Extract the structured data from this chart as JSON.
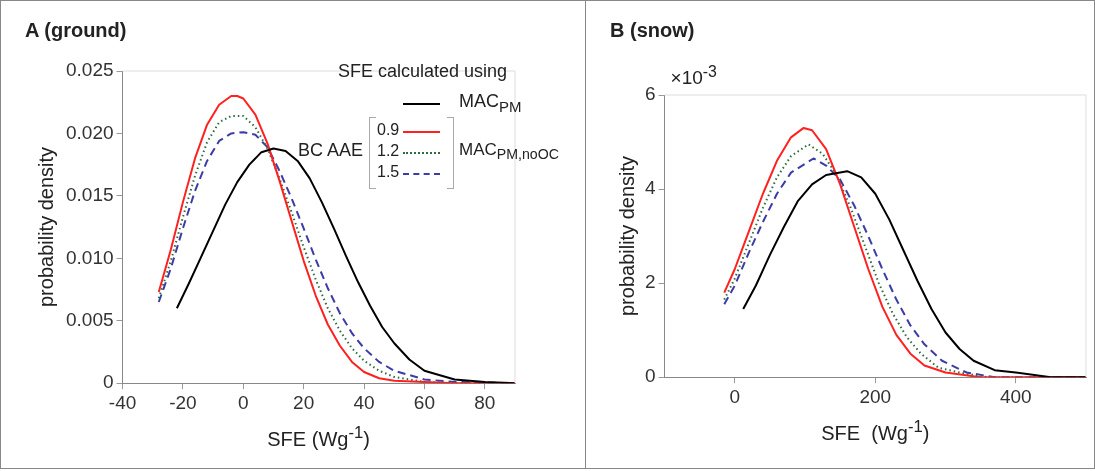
{
  "chart_data": [
    {
      "type": "line",
      "title": "A (ground)",
      "xlabel": "SFE (Wg$^{-1}$)",
      "ylabel": "probability density",
      "legend_title": "SFE calculated using",
      "legend": "top right",
      "marker": "none",
      "grid": false,
      "xlim": [
        -40,
        90
      ],
      "xticks": [
        -40,
        -20,
        0,
        20,
        40,
        60,
        80
      ],
      "ylim": [
        0,
        0.025
      ],
      "yticks": [
        0,
        0.005,
        {
          "value": 0.01,
          "label": "0.010"
        },
        0.015,
        {
          "value": 0.02,
          "label": "0.020"
        },
        0.025
      ],
      "annotations": [
        "BC AAE",
        "MAC$_{PM,noOC}$"
      ],
      "series": [
        {
          "name": "MAC$_{PM}$",
          "color": "#000000",
          "line_style": "solid",
          "x": [
            -22,
            -18,
            -14,
            -10,
            -6,
            -2,
            2,
            6,
            10,
            14,
            18,
            22,
            26,
            30,
            34,
            38,
            42,
            46,
            50,
            55,
            60,
            70,
            80,
            90
          ],
          "values": [
            0.006,
            0.008,
            0.0101,
            0.0122,
            0.0143,
            0.0161,
            0.0175,
            0.0185,
            0.0188,
            0.0186,
            0.0178,
            0.0164,
            0.0145,
            0.0124,
            0.0102,
            0.0081,
            0.0062,
            0.0045,
            0.0032,
            0.0019,
            0.001,
            0.0003,
            0.0001,
            0
          ]
        },
        {
          "name": "0.9",
          "color": "#ff2020",
          "line_style": "solid",
          "x": [
            -28,
            -24,
            -20,
            -16,
            -12,
            -8,
            -4,
            -2,
            0,
            4,
            8,
            12,
            16,
            20,
            24,
            28,
            32,
            36,
            40,
            45,
            50,
            60,
            70,
            90
          ],
          "values": [
            0.0073,
            0.0107,
            0.0145,
            0.018,
            0.0207,
            0.0223,
            0.023,
            0.023,
            0.0228,
            0.0215,
            0.0192,
            0.0162,
            0.013,
            0.0098,
            0.007,
            0.0047,
            0.003,
            0.0017,
            0.0009,
            0.0004,
            0.0002,
            0.0001,
            0,
            0
          ]
        },
        {
          "name": "1.2",
          "color": "#2e6b3e",
          "line_style": "dotted",
          "x": [
            -28,
            -24,
            -20,
            -16,
            -12,
            -8,
            -4,
            0,
            4,
            8,
            12,
            16,
            20,
            24,
            28,
            32,
            36,
            40,
            45,
            50,
            60,
            70,
            90
          ],
          "values": [
            0.0068,
            0.0098,
            0.0133,
            0.0166,
            0.0193,
            0.0209,
            0.0214,
            0.0214,
            0.0205,
            0.0188,
            0.0164,
            0.0137,
            0.0109,
            0.0083,
            0.006,
            0.0042,
            0.0028,
            0.0018,
            0.001,
            0.0005,
            0.0001,
            0,
            0
          ]
        },
        {
          "name": "1.5",
          "color": "#3c3ca8",
          "line_style": "dashed",
          "x": [
            -28,
            -24,
            -20,
            -16,
            -12,
            -8,
            -4,
            0,
            4,
            8,
            12,
            16,
            20,
            24,
            28,
            32,
            36,
            40,
            45,
            50,
            60,
            70,
            90
          ],
          "values": [
            0.0065,
            0.0092,
            0.0124,
            0.0154,
            0.0178,
            0.0194,
            0.02,
            0.0201,
            0.0199,
            0.0189,
            0.017,
            0.0148,
            0.0124,
            0.0099,
            0.0076,
            0.0056,
            0.004,
            0.0028,
            0.0017,
            0.001,
            0.0003,
            0.0001,
            0
          ]
        }
      ]
    },
    {
      "type": "line",
      "title": "B (snow)",
      "xlabel": "SFE  (Wg$^{-1}$)",
      "ylabel": "probability density",
      "marker": "none",
      "grid": false,
      "xlim": [
        -100,
        500
      ],
      "xticks": [
        0,
        200,
        400
      ],
      "ylim": [
        0,
        6
      ],
      "yticks": [
        0,
        2,
        4,
        6
      ],
      "annotations": [
        "×10$^{-3}$"
      ],
      "series": [
        {
          "color": "#000000",
          "line_style": "solid",
          "x": [
            12,
            30,
            50,
            70,
            90,
            110,
            130,
            160,
            180,
            200,
            220,
            240,
            260,
            280,
            300,
            320,
            340,
            370,
            400,
            450,
            500
          ],
          "values": [
            1.45,
            1.95,
            2.6,
            3.2,
            3.75,
            4.1,
            4.3,
            4.38,
            4.25,
            3.9,
            3.35,
            2.7,
            2.05,
            1.45,
            0.95,
            0.6,
            0.35,
            0.15,
            0.1,
            0,
            0
          ]
        },
        {
          "color": "#ff2020",
          "line_style": "solid",
          "x": [
            -15,
            0,
            20,
            40,
            60,
            80,
            98,
            110,
            130,
            150,
            170,
            190,
            210,
            230,
            250,
            270,
            300,
            350,
            400,
            500
          ],
          "values": [
            1.8,
            2.3,
            3.1,
            3.9,
            4.6,
            5.1,
            5.3,
            5.25,
            4.85,
            4.1,
            3.2,
            2.3,
            1.5,
            0.9,
            0.5,
            0.25,
            0.1,
            0,
            0,
            0
          ]
        },
        {
          "color": "#2e6b3e",
          "line_style": "dotted",
          "x": [
            -15,
            0,
            20,
            40,
            60,
            80,
            105,
            125,
            145,
            165,
            185,
            205,
            225,
            245,
            265,
            290,
            320,
            360,
            400,
            500
          ],
          "values": [
            1.65,
            2.1,
            2.85,
            3.6,
            4.25,
            4.7,
            4.95,
            4.75,
            4.3,
            3.6,
            2.8,
            2,
            1.35,
            0.85,
            0.5,
            0.2,
            0.1,
            0,
            0,
            0
          ]
        },
        {
          "color": "#3c3ca8",
          "line_style": "dashed",
          "x": [
            -15,
            0,
            20,
            40,
            60,
            80,
            112,
            130,
            150,
            170,
            190,
            210,
            230,
            250,
            270,
            295,
            330,
            370,
            420,
            500
          ],
          "values": [
            1.55,
            1.95,
            2.65,
            3.3,
            3.9,
            4.35,
            4.65,
            4.5,
            4.2,
            3.65,
            3,
            2.3,
            1.65,
            1.1,
            0.7,
            0.35,
            0.1,
            0,
            0,
            0
          ]
        }
      ]
    }
  ]
}
